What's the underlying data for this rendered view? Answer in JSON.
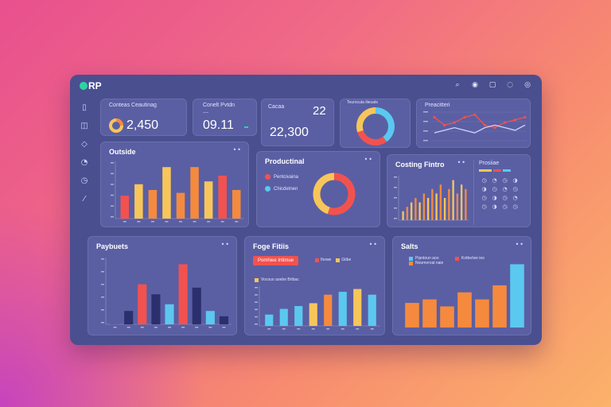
{
  "app": {
    "logo_text": "RP"
  },
  "header_icons": [
    {
      "name": "search-icon",
      "glyph": "⌕"
    },
    {
      "name": "notification-icon",
      "glyph": "◉"
    },
    {
      "name": "messages-icon",
      "glyph": "▢"
    },
    {
      "name": "settings-icon",
      "glyph": "◌"
    },
    {
      "name": "profile-icon",
      "glyph": "◎"
    }
  ],
  "sidebar_icons": [
    {
      "name": "dashboard-icon",
      "glyph": "▯"
    },
    {
      "name": "orders-icon",
      "glyph": "◫"
    },
    {
      "name": "tag-icon",
      "glyph": "◇"
    },
    {
      "name": "reports-icon",
      "glyph": "◔"
    },
    {
      "name": "clock-icon",
      "glyph": "◷"
    },
    {
      "name": "more-icon",
      "glyph": "⁄"
    }
  ],
  "kpis": {
    "k1": {
      "label": "Conteas Ceautinag",
      "value": "2,450"
    },
    "k2": {
      "label": "Conelt Pvtdn",
      "value": "09.11"
    },
    "k3": {
      "label": "Cacaa",
      "value": "22,300",
      "badge": "22"
    },
    "k4": {
      "label": "Teurocuta ilieuats"
    },
    "k5": {
      "label": "Preacitteri"
    }
  },
  "cards": {
    "outside": {
      "title": "Outside",
      "more": "••"
    },
    "products": {
      "title": "Productinal",
      "more": "••",
      "legend": [
        "Pentcivaina",
        "Chicdetnen"
      ]
    },
    "casting": {
      "title": "Costing Fintro",
      "more": "••",
      "legend_label": "Prosiiae"
    },
    "payments": {
      "title": "Paybuets",
      "more": "••"
    },
    "fogefituis": {
      "title": "Foge Fitiis",
      "more": "••",
      "button": "Pomhiee Intimue",
      "legend": [
        "Ihowe",
        "Gitbe"
      ],
      "sub": "Vocouo aoebe Brtbac"
    },
    "salts": {
      "title": "Salts",
      "more": "••",
      "legend": [
        "Pipntoun aoo",
        "Noumeroal naie",
        "Kotbe/we ieo"
      ]
    }
  },
  "colors": {
    "red": "#f2524f",
    "orange": "#f58a3e",
    "yellow": "#f7c65a",
    "blue": "#5bc8f0",
    "navy": "#2c2f6e",
    "card": "#5a5fa3"
  },
  "chart_data": [
    {
      "type": "line",
      "title": "Preacitteri",
      "x": [
        1,
        2,
        3,
        4,
        5,
        6,
        7,
        8,
        9,
        10
      ],
      "series": [
        {
          "color": "#f2524f",
          "values": [
            9,
            6,
            7,
            9,
            10,
            6,
            5,
            7,
            8,
            9
          ]
        },
        {
          "color": "#cfd3ff",
          "values": [
            3,
            4,
            5,
            4,
            3,
            5,
            6,
            5,
            4,
            6
          ]
        }
      ]
    },
    {
      "type": "bar",
      "title": "Outside",
      "values": [
        4,
        6,
        5,
        9,
        4.5,
        9,
        6.5,
        7.5,
        5
      ],
      "colors": [
        "#f2524f",
        "#f7c65a",
        "#f58a3e",
        "#f7c65a",
        "#f58a3e",
        "#f58a3e",
        "#f7c65a",
        "#f2524f",
        "#f58a3e"
      ]
    },
    {
      "type": "pie",
      "title": "Productinal",
      "values": [
        55,
        45
      ],
      "colors": [
        "#f2524f",
        "#f7c65a"
      ]
    },
    {
      "type": "pie",
      "title": "Teurocuta ilieuats",
      "values": [
        40,
        30,
        30
      ],
      "colors": [
        "#5bc8f0",
        "#f2524f",
        "#f7c65a"
      ]
    },
    {
      "type": "bar",
      "title": "Costing Fintro",
      "values": [
        2,
        3,
        4,
        5,
        4,
        6,
        5,
        7,
        6,
        8,
        5,
        7,
        9,
        6,
        8,
        7
      ],
      "colors": [
        "#f7c65a",
        "#f58a3e"
      ]
    },
    {
      "type": "bar",
      "title": "Paybuets",
      "values": [
        1,
        2,
        6,
        4.5,
        3,
        9,
        5.5,
        2,
        1.2
      ],
      "colors": [
        "#5a5fa3",
        "#2c2f6e",
        "#f2524f",
        "#2c2f6e",
        "#5bc8f0",
        "#f2524f",
        "#2c2f6e",
        "#5bc8f0",
        "#2c2f6e"
      ]
    },
    {
      "type": "bar",
      "title": "Foge Fitiis",
      "values": [
        2,
        3,
        3.5,
        4,
        5.5,
        6,
        6.5,
        5.5
      ],
      "colors": [
        "#5bc8f0",
        "#5bc8f0",
        "#5bc8f0",
        "#f7c65a",
        "#f58a3e",
        "#5bc8f0",
        "#f7c65a",
        "#5bc8f0"
      ]
    },
    {
      "type": "bar",
      "title": "Salts",
      "values": [
        3.5,
        4,
        3,
        5,
        4,
        6,
        9
      ],
      "colors": [
        "#f58a3e",
        "#f58a3e",
        "#f58a3e",
        "#f58a3e",
        "#f58a3e",
        "#f58a3e",
        "#5bc8f0"
      ]
    }
  ]
}
